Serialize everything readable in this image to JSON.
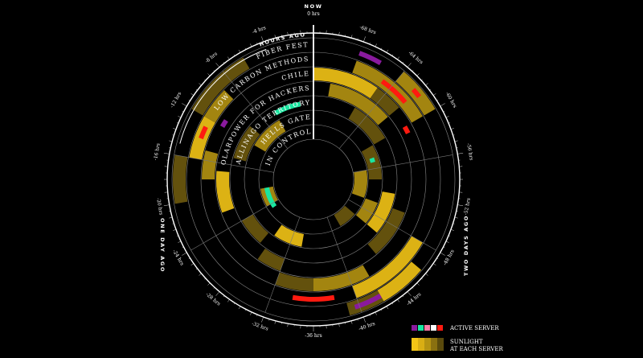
{
  "diagram": {
    "now_label": "NOW",
    "now_hours": "0 hrs",
    "hour_labels": [
      "-4 hrs",
      "-8 hrs",
      "-12 hrs",
      "-16 hrs",
      "-20 hrs",
      "-24 hrs",
      "-28 hrs",
      "-32 hrs",
      "-36 hrs",
      "-40 hrs",
      "-44 hrs",
      "-48 hrs",
      "-52 hrs",
      "-56 hrs",
      "-60 hrs",
      "-64 hrs",
      "-68 hrs"
    ],
    "markers": {
      "hours_ago": "HOURS AGO",
      "one_day_ago": "ONE DAY AGO",
      "two_days_ago": "TWO DAYS AGO"
    },
    "rings": [
      "FIBER FEST",
      "LOW CARBON METHODS",
      "CHILE",
      "SOLARPOWER FOR HACKERS",
      "KALLINAGO TERRITORY",
      "HELLS GATE",
      "CADDIE IN CONTROL"
    ],
    "colors": {
      "sun_bright": "#f4c516",
      "sun_mid": "#b59312",
      "sun_low": "#6e5a0e",
      "sun_dim": "#3a3008",
      "active_red": "#ff1a10",
      "active_green": "#19e6a0",
      "active_purple": "#8a1a9e",
      "active_pink": "#ff7ba8",
      "active_white": "#ffffff"
    }
  },
  "legend": {
    "active_server": "ACTIVE SERVER",
    "sunlight_line1": "SUNLIGHT",
    "sunlight_line2": "AT EACH SERVER"
  }
}
